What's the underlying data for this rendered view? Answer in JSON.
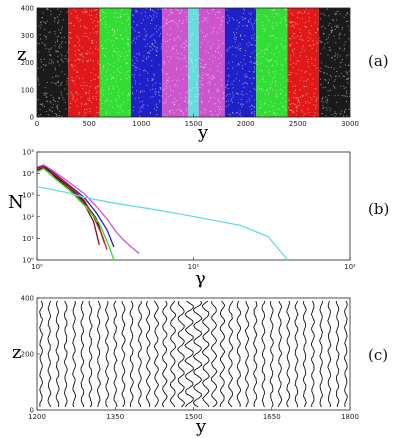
{
  "panels": [
    {
      "label": "(a)",
      "xlabel": "y",
      "ylabel": "z",
      "xticks": [
        "0",
        "500",
        "1000",
        "1500",
        "2000",
        "2500",
        "3000"
      ],
      "yticks": [
        "0",
        "100",
        "200",
        "300",
        "400"
      ]
    },
    {
      "label": "(b)",
      "xlabel": "γ",
      "ylabel": "N",
      "xticks": [
        "10⁰",
        "10¹",
        "10²"
      ],
      "yticks": [
        "10⁰",
        "10¹",
        "10²",
        "10³",
        "10⁴",
        "10⁵"
      ]
    },
    {
      "label": "(c)",
      "xlabel": "y",
      "ylabel": "z",
      "xticks": [
        "1200",
        "1350",
        "1500",
        "1650",
        "1800"
      ],
      "yticks": [
        "0",
        "200",
        "400"
      ]
    }
  ],
  "colors": {
    "black": "#1a1a1a",
    "red": "#e01818",
    "green": "#33dd33",
    "blue": "#2020c8",
    "magenta": "#cc55cc",
    "cyan": "#66dddd",
    "brown": "#6b1a1a"
  },
  "chart_data": [
    {
      "type": "scatter",
      "xlim": [
        0,
        3000
      ],
      "ylim": [
        0,
        400
      ],
      "bands": [
        {
          "color": "#1a1a1a",
          "y_range": [
            0,
            300
          ]
        },
        {
          "color": "#e01818",
          "y_range": [
            300,
            600
          ]
        },
        {
          "color": "#33dd33",
          "y_range": [
            600,
            900
          ]
        },
        {
          "color": "#2020c8",
          "y_range": [
            900,
            1200
          ]
        },
        {
          "color": "#cc55cc",
          "y_range": [
            1200,
            1450
          ]
        },
        {
          "color": "#66dddd",
          "y_range": [
            1450,
            1550
          ]
        },
        {
          "color": "#cc55cc",
          "y_range": [
            1550,
            1800
          ]
        },
        {
          "color": "#2020c8",
          "y_range": [
            1800,
            2100
          ]
        },
        {
          "color": "#33dd33",
          "y_range": [
            2100,
            2400
          ]
        },
        {
          "color": "#e01818",
          "y_range": [
            2400,
            2700
          ]
        },
        {
          "color": "#1a1a1a",
          "y_range": [
            2700,
            3000
          ]
        }
      ]
    },
    {
      "type": "line",
      "x_scale": "log",
      "y_scale": "log",
      "xlim": [
        1,
        100
      ],
      "ylim": [
        1,
        100000
      ],
      "series": [
        {
          "color": "#cc55cc",
          "x": [
            1.0,
            1.1,
            1.3,
            1.6,
            2.0,
            2.4,
            2.8,
            3.2,
            3.6,
            4.0,
            4.5
          ],
          "y": [
            20000,
            25000,
            12000,
            4000,
            1200,
            300,
            80,
            20,
            8,
            4,
            2
          ]
        },
        {
          "color": "#2020c8",
          "x": [
            1.0,
            1.1,
            1.3,
            1.6,
            2.0,
            2.4,
            2.8,
            3.1
          ],
          "y": [
            18000,
            22000,
            10000,
            3000,
            800,
            150,
            25,
            4
          ]
        },
        {
          "color": "#1a1a1a",
          "x": [
            1.0,
            1.1,
            1.3,
            1.6,
            2.0,
            2.4,
            2.7
          ],
          "y": [
            15000,
            20000,
            8000,
            2500,
            500,
            80,
            6
          ]
        },
        {
          "color": "#e01818",
          "x": [
            1.0,
            1.1,
            1.3,
            1.6,
            2.0,
            2.3,
            2.6,
            2.8
          ],
          "y": [
            16000,
            21000,
            9000,
            2800,
            600,
            100,
            15,
            3
          ]
        },
        {
          "color": "#6b1a1a",
          "x": [
            1.0,
            1.15,
            1.3,
            1.6,
            2.0,
            2.3,
            2.5
          ],
          "y": [
            14000,
            19000,
            7000,
            2000,
            400,
            60,
            5
          ]
        },
        {
          "color": "#33dd33",
          "x": [
            1.0,
            1.1,
            1.3,
            1.6,
            2.0,
            2.5,
            2.9,
            3.1
          ],
          "y": [
            12000,
            17000,
            6000,
            1800,
            350,
            50,
            4,
            1
          ]
        },
        {
          "color": "#66dddd",
          "x": [
            1.0,
            1.5,
            2.0,
            3.0,
            5.0,
            8.0,
            12.0,
            20.0,
            30.0,
            40.0
          ],
          "y": [
            2500,
            1400,
            800,
            450,
            250,
            140,
            80,
            40,
            12,
            1
          ]
        }
      ]
    },
    {
      "type": "line",
      "xlim": [
        1200,
        1800
      ],
      "ylim": [
        0,
        400
      ]
    }
  ]
}
